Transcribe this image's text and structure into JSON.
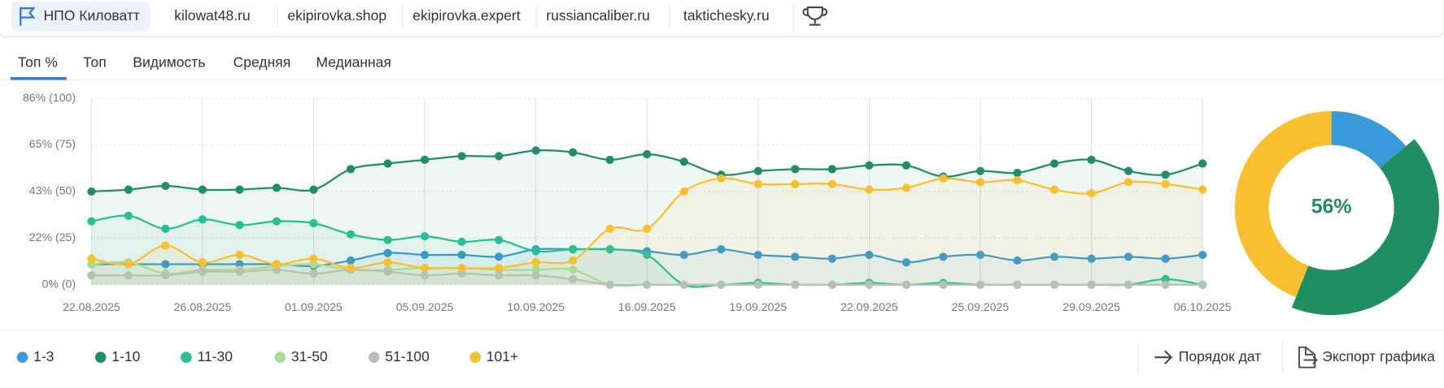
{
  "tabs": [
    "НПО Киловатт",
    "kilowat48.ru",
    "ekipirovka.shop",
    "ekipirovka.expert",
    "russiancaliber.ru",
    "taktichesky.ru"
  ],
  "subtabs": [
    "Топ %",
    "Топ",
    "Видимость",
    "Средняя",
    "Медианная"
  ],
  "buttons": [
    "Порядок дат",
    "Экспорт графика"
  ],
  "chart_data": [
    {
      "type": "line",
      "categories": [
        "22.08.2025",
        null,
        null,
        "26.08.2025",
        null,
        null,
        "01.09.2025",
        null,
        null,
        "05.09.2025",
        null,
        null,
        "10.09.2025",
        null,
        null,
        "16.09.2025",
        null,
        null,
        "19.09.2025",
        null,
        null,
        "22.09.2025",
        null,
        null,
        "25.09.2025",
        null,
        null,
        "29.09.2025",
        null,
        null,
        "06.10.2025"
      ],
      "ylim": [
        0,
        100
      ],
      "yticks": [
        {
          "value": 0,
          "label": "0% (0)"
        },
        {
          "value": 25,
          "label": "22% (25)"
        },
        {
          "value": 50,
          "label": "43% (50)"
        },
        {
          "value": 75,
          "label": "65% (75)"
        },
        {
          "value": 100,
          "label": "86% (100)"
        }
      ],
      "grid": true,
      "series": [
        {
          "name": "1-3",
          "color": "#3a9ad9",
          "values": [
            11,
            11,
            11,
            11,
            11,
            11,
            10,
            13,
            17,
            16,
            16,
            15,
            19,
            19,
            19,
            18,
            16,
            19,
            16,
            15,
            14,
            16,
            12,
            15,
            16,
            13,
            15,
            14,
            15,
            14,
            16
          ]
        },
        {
          "name": "1-10",
          "color": "#1f8f63",
          "values": [
            50,
            51,
            53,
            51,
            51,
            52,
            51,
            62,
            65,
            67,
            69,
            69,
            72,
            71,
            67,
            70,
            66,
            59,
            61,
            62,
            62,
            64,
            64,
            58,
            61,
            60,
            65,
            67,
            61,
            59,
            65
          ]
        },
        {
          "name": "11-30",
          "color": "#27bf94",
          "values": [
            34,
            37,
            30,
            35,
            32,
            34,
            33,
            27,
            24,
            26,
            23,
            24,
            18,
            19,
            19,
            16,
            0,
            0,
            1,
            0,
            0,
            1,
            0,
            1,
            0,
            0,
            0,
            0,
            0,
            3,
            0
          ]
        },
        {
          "name": "31-50",
          "color": "#a8dd97",
          "values": [
            11,
            12,
            6,
            8,
            8,
            10,
            11,
            8,
            8,
            9,
            9,
            8,
            8,
            8,
            0,
            0,
            0,
            0,
            0,
            0,
            0,
            0,
            0,
            0,
            0,
            0,
            0,
            0,
            0,
            0,
            0
          ]
        },
        {
          "name": "51-100",
          "color": "#b3c1bd",
          "values": [
            5,
            5,
            5,
            7,
            7,
            8,
            6,
            8,
            7,
            5,
            6,
            5,
            5,
            3,
            0,
            0,
            0,
            0,
            0,
            0,
            0,
            0,
            0,
            0,
            0,
            0,
            0,
            0,
            0,
            0,
            0
          ]
        },
        {
          "name": "101+",
          "color": "#f9bf2e",
          "values": [
            14,
            11,
            21,
            12,
            16,
            11,
            14,
            9,
            12,
            9,
            9,
            9,
            12,
            13,
            30,
            30,
            50,
            57,
            54,
            54,
            54,
            51,
            52,
            57,
            55,
            56,
            51,
            49,
            55,
            54,
            51
          ]
        }
      ]
    },
    {
      "type": "pie",
      "center_label": "56%",
      "values": [
        14,
        42,
        44
      ],
      "colors": [
        "#3a9ad9",
        "#1f8f63",
        "#f9bf2e"
      ]
    }
  ]
}
